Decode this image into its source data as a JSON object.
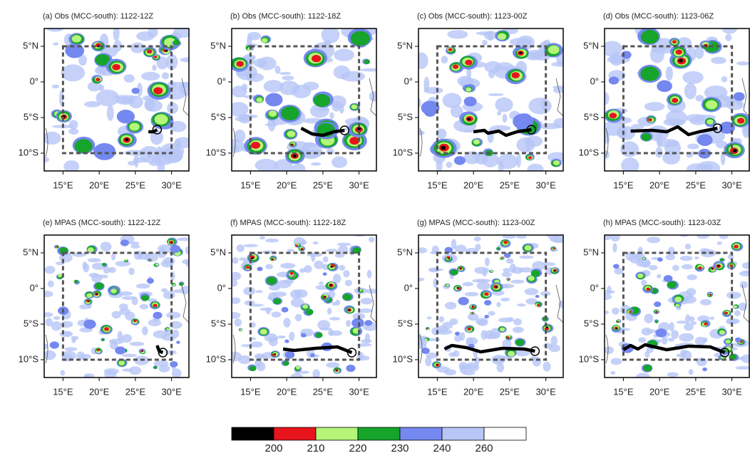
{
  "panels": [
    {
      "title": "(a) Obs (MCC-south): 1122-12Z"
    },
    {
      "title": "(b) Obs (MCC-south): 1122-18Z"
    },
    {
      "title": "(c) Obs (MCC-south): 1123-00Z"
    },
    {
      "title": "(d) Obs (MCC-south): 1123-06Z"
    },
    {
      "title": "(e) MPAS (MCC-south): 1122-12Z"
    },
    {
      "title": "(f) MPAS (MCC-south): 1122-18Z"
    },
    {
      "title": "(g) MPAS (MCC-south): 1123-00Z"
    },
    {
      "title": "(h) MPAS (MCC-south): 1123-03Z"
    }
  ],
  "lonlim": [
    12.4,
    32.4
  ],
  "latlim": [
    -12.5,
    7.5
  ],
  "lon_ticks": [
    {
      "value": 15,
      "label": "15°E"
    },
    {
      "value": 20,
      "label": "20°E"
    },
    {
      "value": 25,
      "label": "25°E"
    },
    {
      "value": 30,
      "label": "30°E"
    }
  ],
  "lat_ticks": [
    {
      "value": 5,
      "label": "5°N"
    },
    {
      "value": 0,
      "label": "0°"
    },
    {
      "value": -5,
      "label": "5°S"
    },
    {
      "value": -10,
      "label": "10°S"
    }
  ],
  "colorbar": {
    "colors": [
      "#000000",
      "#e8141c",
      "#b4f57a",
      "#16a52a",
      "#7488f0",
      "#b6c6f6",
      "#ffffff"
    ],
    "labels": [
      200,
      210,
      220,
      230,
      240,
      260
    ]
  }
}
